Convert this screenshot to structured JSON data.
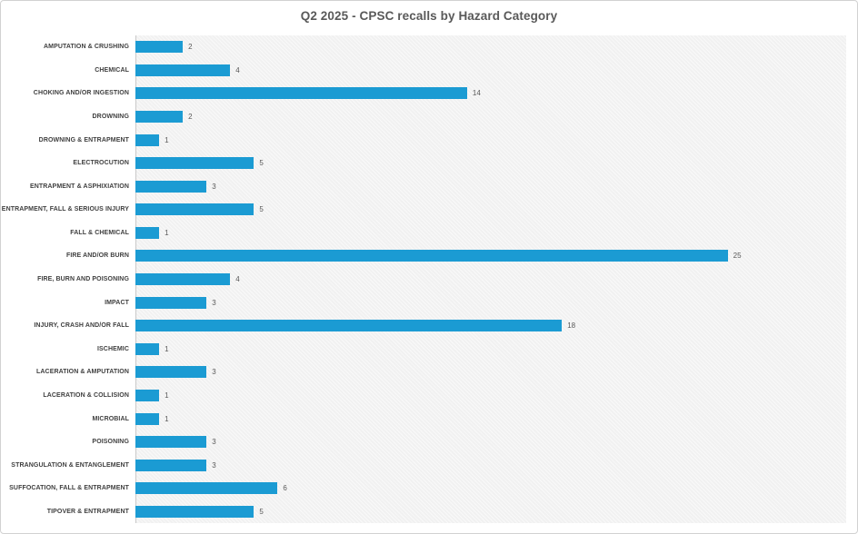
{
  "chart_data": {
    "type": "bar",
    "orientation": "horizontal",
    "title": "Q2 2025 - CPSC recalls by Hazard Category",
    "categories": [
      "AMPUTATION & CRUSHING",
      "CHEMICAL",
      "CHOKING AND/OR INGESTION",
      "DROWNING",
      "DROWNING & ENTRAPMENT",
      "ELECTROCUTION",
      "ENTRAPMENT & ASPHIXIATION",
      "ENTRAPMENT, FALL & SERIOUS INJURY",
      "FALL & CHEMICAL",
      "FIRE AND/OR BURN",
      "FIRE, BURN AND POISONING",
      "IMPACT",
      "INJURY, CRASH AND/OR FALL",
      "ISCHEMIC",
      "LACERATION & AMPUTATION",
      "LACERATION & COLLISION",
      "MICROBIAL",
      "POISONING",
      "STRANGULATION & ENTANGLEMENT",
      "SUFFOCATION, FALL & ENTRAPMENT",
      "TIPOVER & ENTRAPMENT"
    ],
    "values": [
      2,
      4,
      14,
      2,
      1,
      5,
      3,
      5,
      1,
      25,
      4,
      3,
      18,
      1,
      3,
      1,
      1,
      3,
      3,
      6,
      5
    ],
    "xlim": [
      0,
      30
    ],
    "grid": false,
    "data_labels": true,
    "legend": "none",
    "colors": {
      "bar": "#1b9bd3",
      "title": "#595959",
      "category_label": "#3f3f3f",
      "value_label": "#595959",
      "plot_background": "#f2f2f2",
      "axis_line": "#c9c9c9",
      "border": "#d2d2d2"
    }
  }
}
